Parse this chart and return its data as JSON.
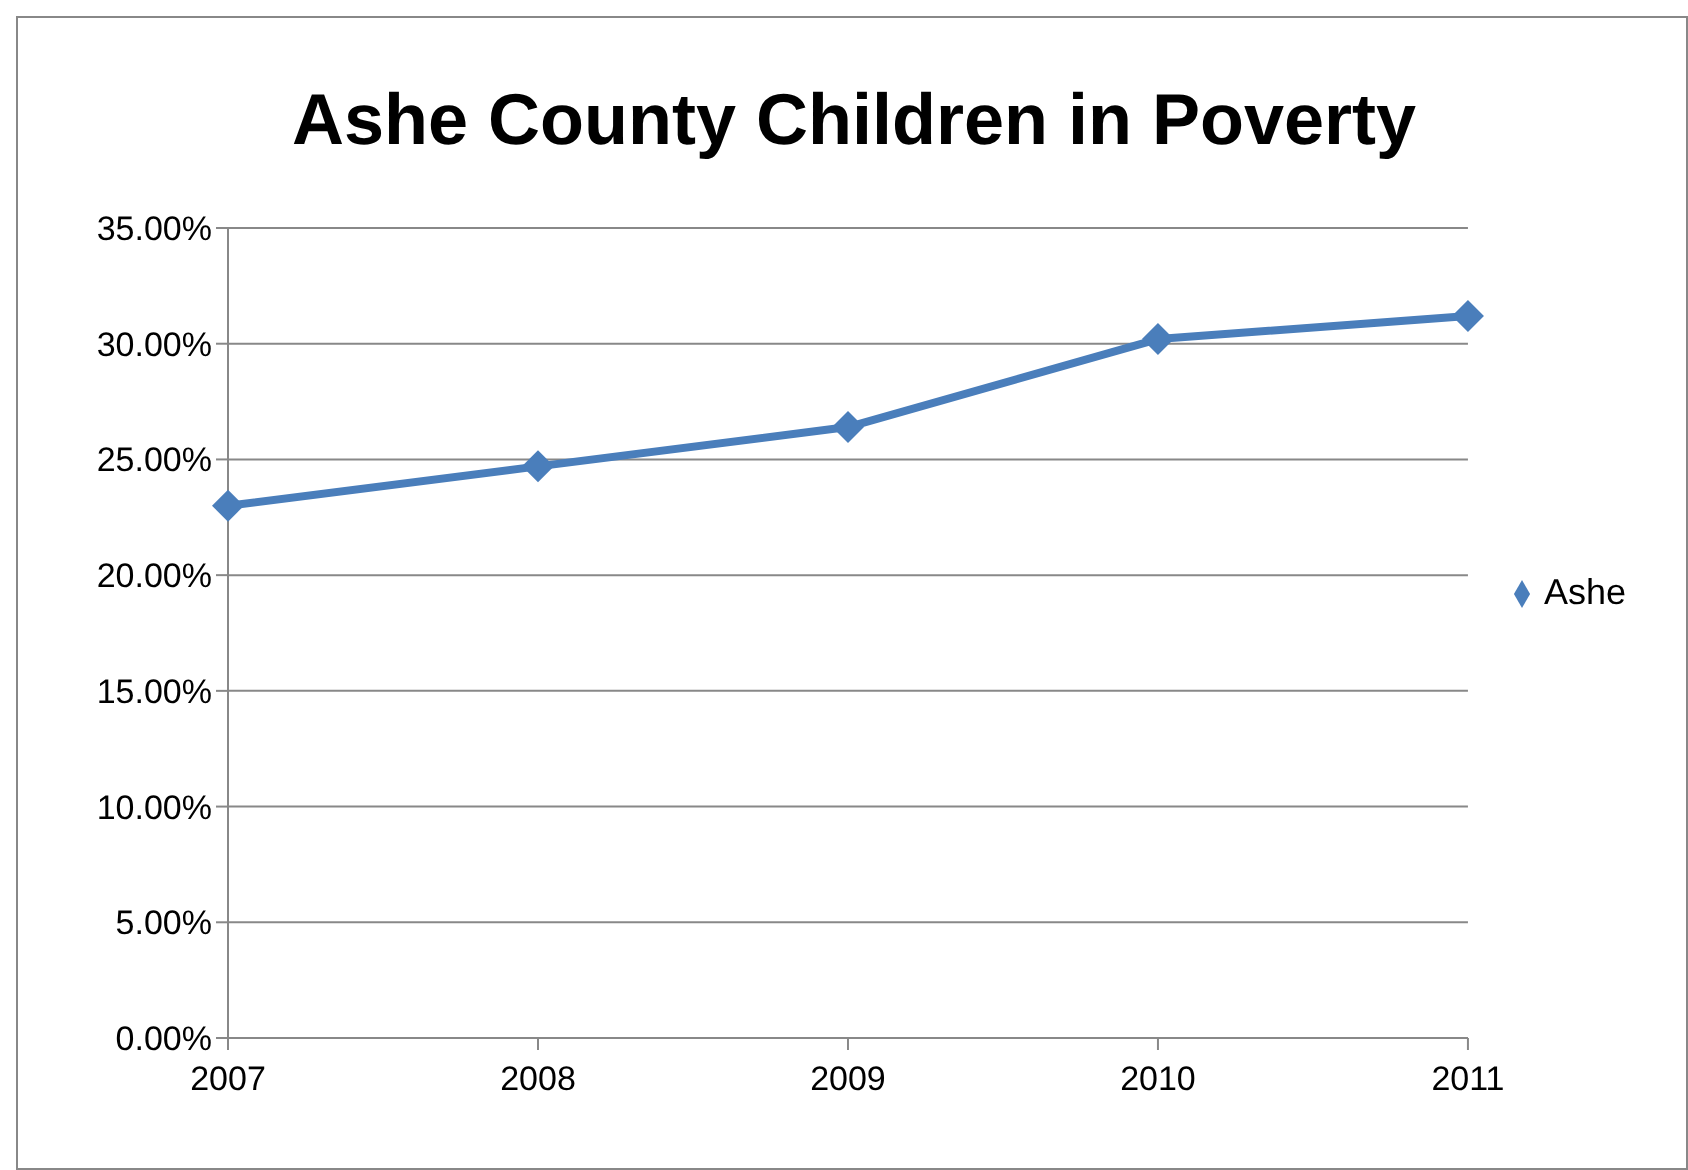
{
  "chart_data": {
    "type": "line",
    "title": "Ashe County Children in Poverty",
    "categories": [
      "2007",
      "2008",
      "2009",
      "2010",
      "2011"
    ],
    "series": [
      {
        "name": "Ashe",
        "color": "#4a7ebb",
        "values": [
          23.0,
          24.7,
          26.4,
          30.2,
          31.2
        ]
      }
    ],
    "ylim": [
      0,
      35
    ],
    "yticks": [
      {
        "value": 0,
        "label": "0.00%"
      },
      {
        "value": 5,
        "label": "5.00%"
      },
      {
        "value": 10,
        "label": "10.00%"
      },
      {
        "value": 15,
        "label": "15.00%"
      },
      {
        "value": 20,
        "label": "20.00%"
      },
      {
        "value": 25,
        "label": "25.00%"
      },
      {
        "value": 30,
        "label": "30.00%"
      },
      {
        "value": 35,
        "label": "35.00%"
      }
    ],
    "grid": "y",
    "legend": "right",
    "marker": "diamond",
    "line_style": "solid"
  }
}
